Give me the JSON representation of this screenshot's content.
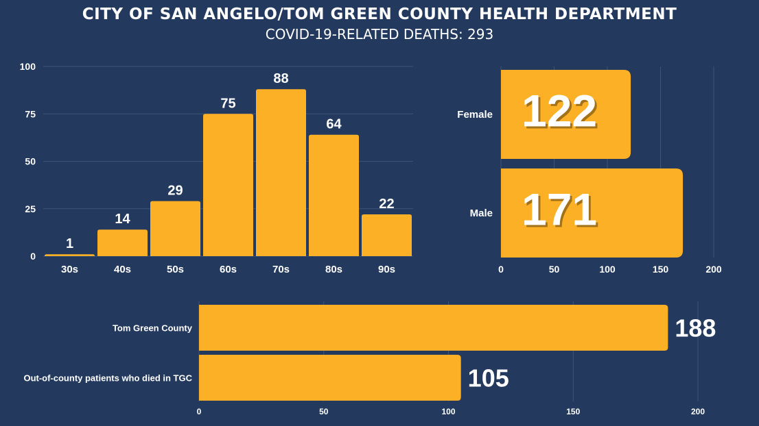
{
  "header": {
    "title": "CITY OF SAN ANGELO/TOM GREEN COUNTY HEALTH DEPARTMENT",
    "subtitle": "COVID-19-RELATED DEATHS: 293"
  },
  "colors": {
    "background": "#233a5e",
    "bar": "#fbb026",
    "grid": "#3c5479",
    "text": "#ffffff"
  },
  "chart_data": [
    {
      "type": "bar",
      "categories": [
        "30s",
        "40s",
        "50s",
        "60s",
        "70s",
        "80s",
        "90s"
      ],
      "values": [
        1,
        14,
        29,
        75,
        88,
        64,
        22
      ],
      "yticks": [
        0,
        25,
        50,
        75,
        100
      ],
      "ylim": [
        0,
        100
      ],
      "grid": true,
      "data_labels": true
    },
    {
      "type": "bar",
      "orientation": "horizontal",
      "categories": [
        "Female",
        "Male"
      ],
      "values": [
        122,
        171
      ],
      "xticks": [
        0,
        50,
        100,
        150,
        200
      ],
      "xlim": [
        0,
        200
      ],
      "grid": true,
      "data_labels": true
    },
    {
      "type": "bar",
      "orientation": "horizontal",
      "categories": [
        "Tom Green County",
        "Out-of-county patients who died in TGC"
      ],
      "values": [
        188,
        105
      ],
      "xticks": [
        0,
        50,
        100,
        150,
        200
      ],
      "xlim": [
        0,
        200
      ],
      "grid": true,
      "data_labels": true
    }
  ]
}
